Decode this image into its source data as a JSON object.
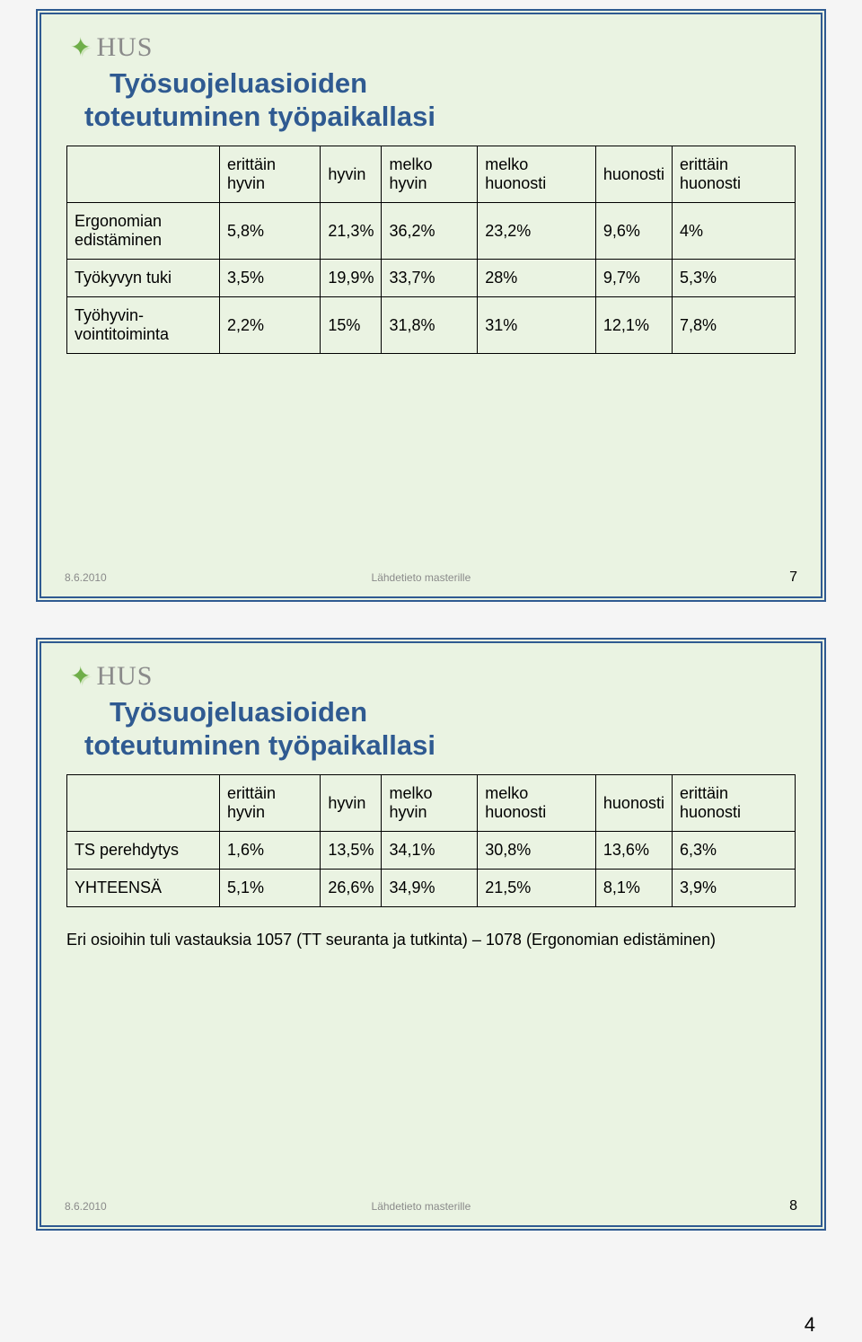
{
  "hus_label": "HUS",
  "slide1": {
    "title_line1": "Työsuojeluasioiden",
    "title_line2": "toteutuminen työpaikallasi",
    "columns": [
      "",
      "erittäin hyvin",
      "hyvin",
      "melko hyvin",
      "melko huonosti",
      "huonosti",
      "erittäin huonosti"
    ],
    "rows": [
      {
        "label": "Ergonomian edistäminen",
        "cells": [
          "5,8%",
          "21,3%",
          "36,2%",
          "23,2%",
          "9,6%",
          "4%"
        ]
      },
      {
        "label": "Työkyvyn tuki",
        "cells": [
          "3,5%",
          "19,9%",
          "33,7%",
          "28%",
          "9,7%",
          "5,3%"
        ]
      },
      {
        "label": "Työhyvin-vointitoiminta",
        "cells": [
          "2,2%",
          "15%",
          "31,8%",
          "31%",
          "12,1%",
          "7,8%"
        ]
      }
    ],
    "footer_date": "8.6.2010",
    "footer_source": "Lähdetieto masterille",
    "footer_page": "7"
  },
  "slide2": {
    "title_line1": "Työsuojeluasioiden",
    "title_line2": "toteutuminen työpaikallasi",
    "columns": [
      "",
      "erittäin hyvin",
      "hyvin",
      "melko hyvin",
      "melko huonosti",
      "huonosti",
      "erittäin huonosti"
    ],
    "rows": [
      {
        "label": "TS perehdytys",
        "cells": [
          "1,6%",
          "13,5%",
          "34,1%",
          "30,8%",
          "13,6%",
          "6,3%"
        ]
      },
      {
        "label": "YHTEENSÄ",
        "cells": [
          "5,1%",
          "26,6%",
          "34,9%",
          "21,5%",
          "8,1%",
          "3,9%"
        ]
      }
    ],
    "note": "Eri osioihin tuli vastauksia 1057 (TT seuranta ja tutkinta) – 1078 (Ergonomian edistäminen)",
    "footer_date": "8.6.2010",
    "footer_source": "Lähdetieto masterille",
    "footer_page": "8"
  },
  "big_page_number": "4"
}
